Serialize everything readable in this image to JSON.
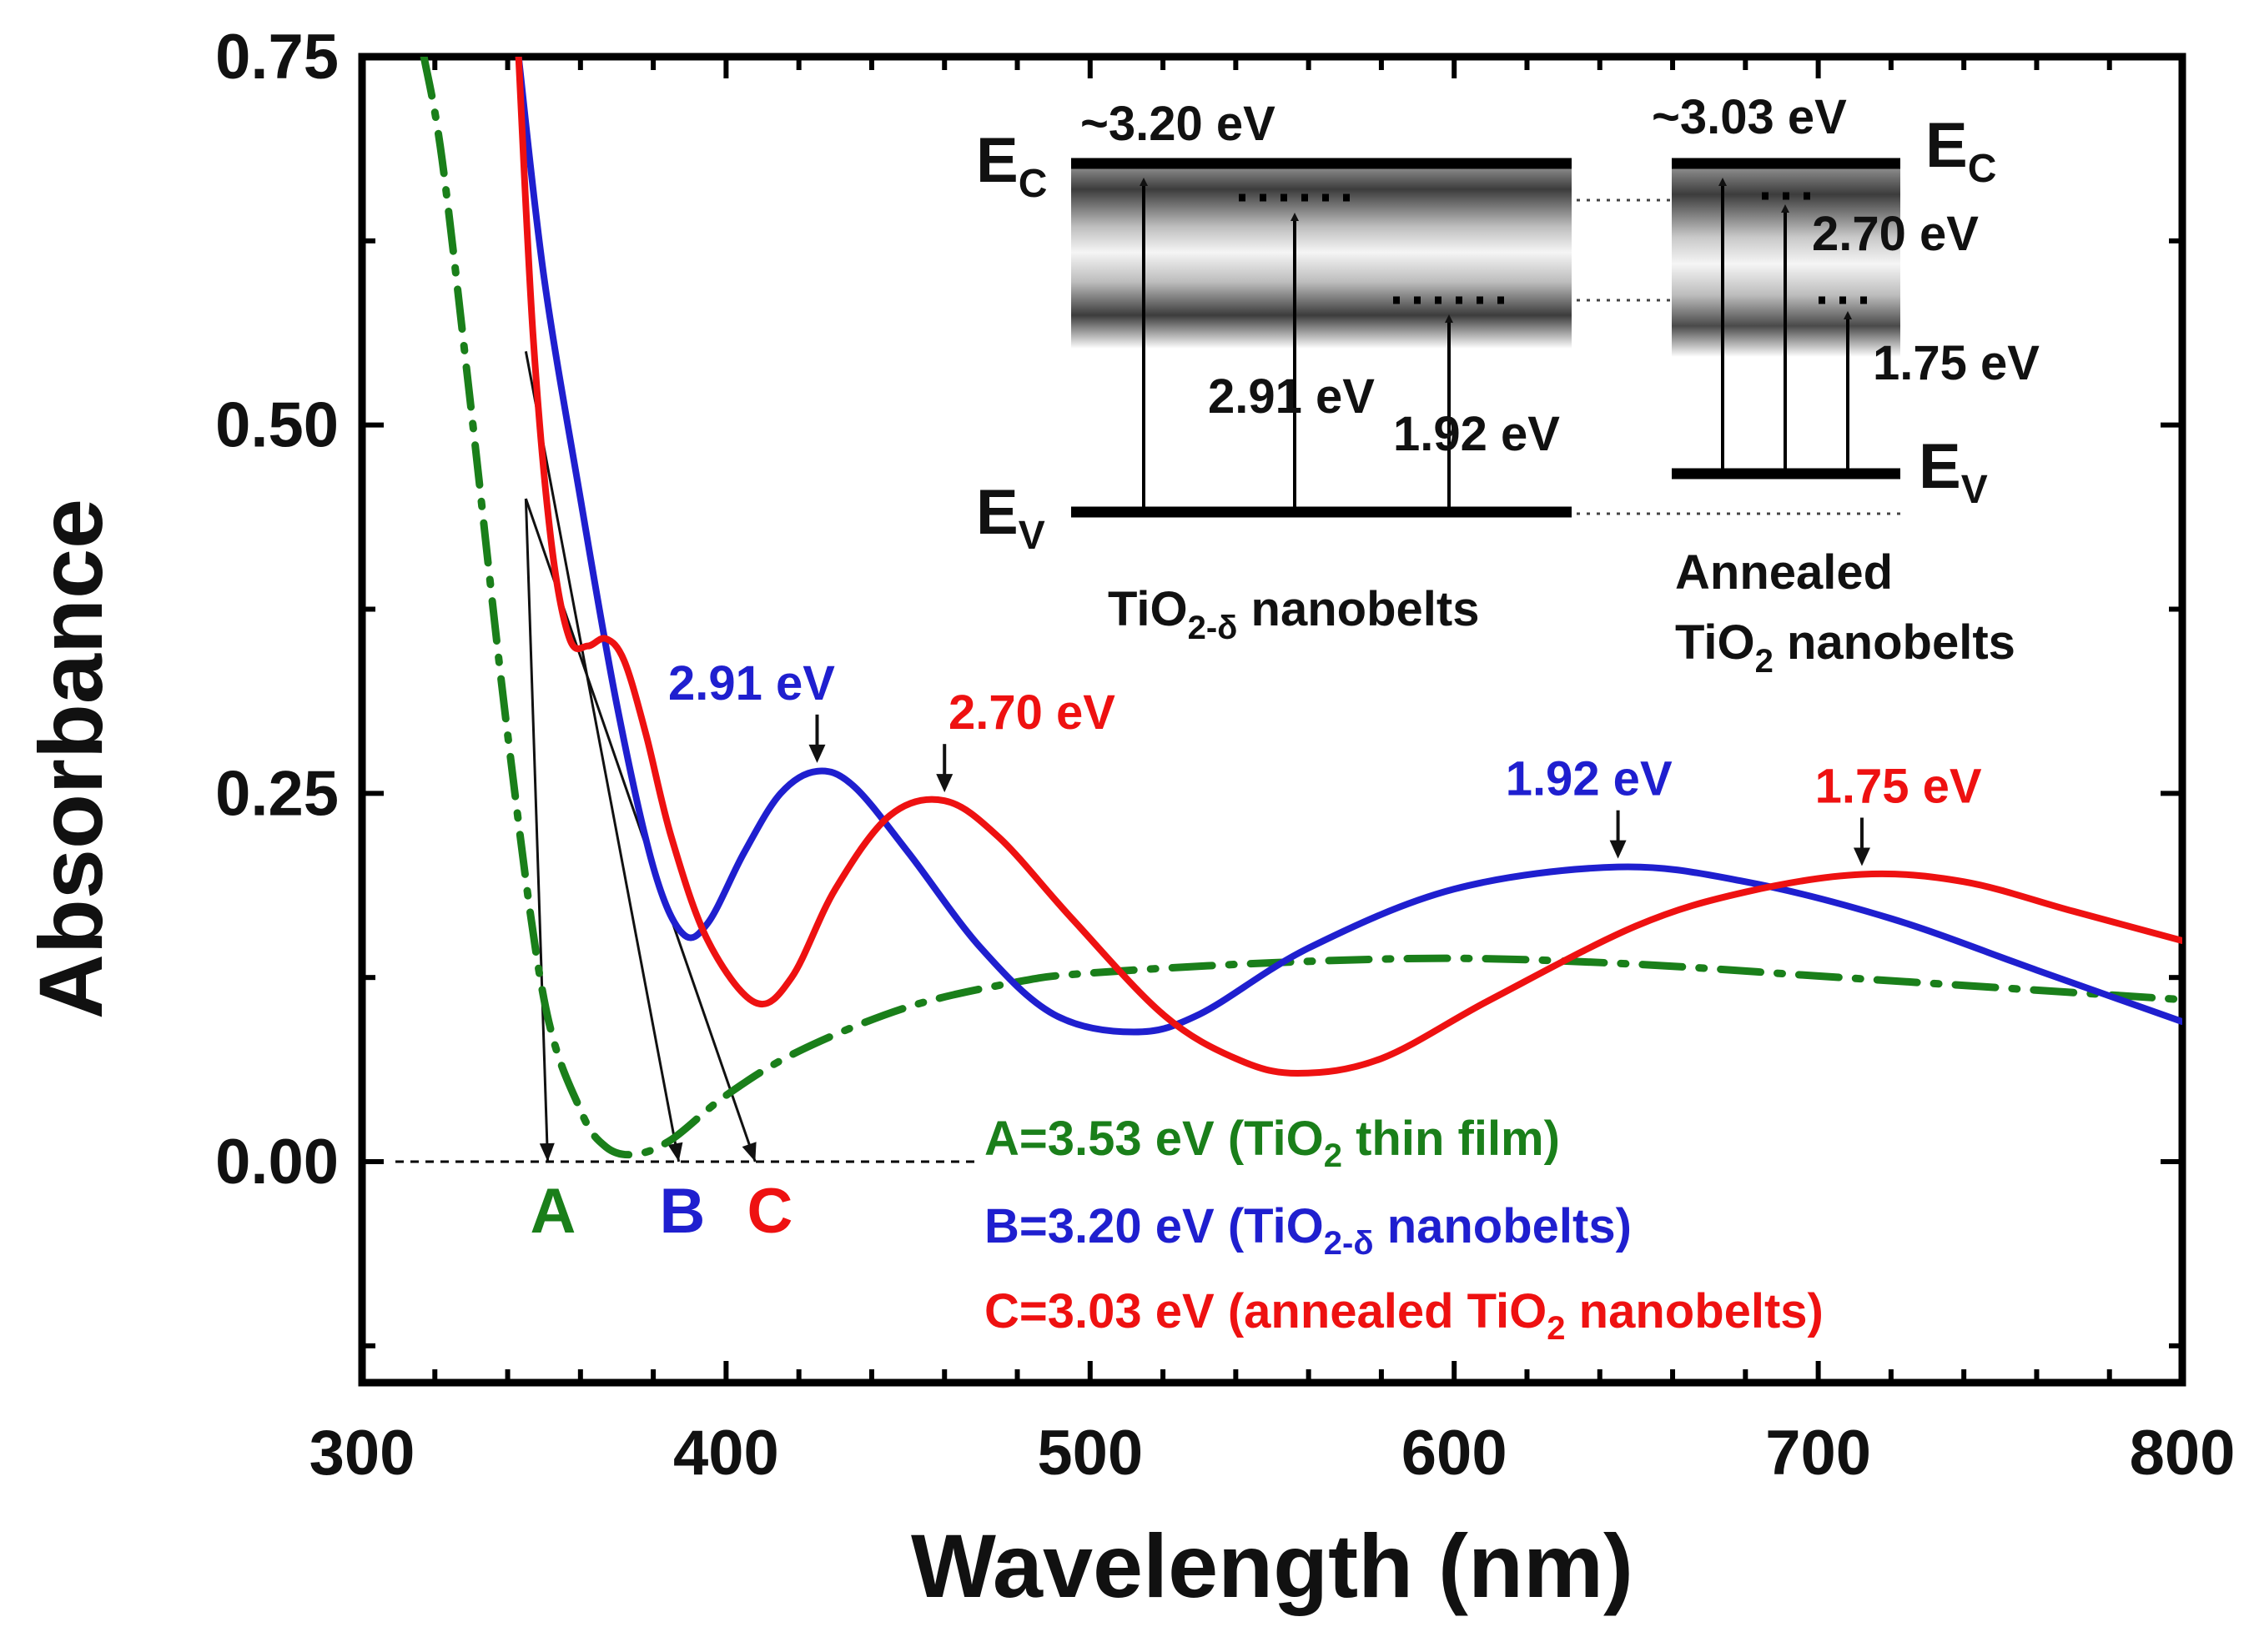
{
  "chart_data": {
    "type": "line",
    "xlabel": "Wavelength (nm)",
    "ylabel": "Absorbance",
    "xlim": [
      300,
      800
    ],
    "ylim": [
      -0.15,
      0.75
    ],
    "xticks": [
      300,
      400,
      500,
      600,
      700,
      800
    ],
    "xtick_labels": [
      "300",
      "400",
      "500",
      "600",
      "700",
      "800"
    ],
    "yticks": [
      0.0,
      0.25,
      0.5,
      0.75
    ],
    "ytick_labels": [
      "0.00",
      "0.25",
      "0.50",
      "0.75"
    ],
    "series": [
      {
        "name": "TiO2 thin film",
        "color": "#1a7f1a",
        "style": "dash-dot",
        "x": [
          317,
          322,
          330,
          340,
          350,
          360,
          367,
          375,
          385,
          400,
          420,
          450,
          480,
          500,
          550,
          600,
          650,
          700,
          750,
          800
        ],
        "y": [
          0.75,
          0.68,
          0.51,
          0.29,
          0.11,
          0.035,
          0.01,
          0.005,
          0.015,
          0.045,
          0.075,
          0.105,
          0.122,
          0.128,
          0.135,
          0.138,
          0.134,
          0.126,
          0.118,
          0.11
        ]
      },
      {
        "name": "TiO2-δ nanobelts",
        "color": "#1f1fcf",
        "style": "solid",
        "x": [
          343,
          350,
          360,
          370,
          380,
          388,
          395,
          405,
          415,
          425,
          435,
          450,
          470,
          490,
          512,
          530,
          560,
          600,
          645,
          680,
          720,
          760,
          800
        ],
        "y": [
          0.75,
          0.6,
          0.45,
          0.31,
          0.2,
          0.155,
          0.162,
          0.21,
          0.25,
          0.265,
          0.255,
          0.21,
          0.145,
          0.1,
          0.088,
          0.1,
          0.145,
          0.185,
          0.2,
          0.19,
          0.165,
          0.13,
          0.095
        ]
      },
      {
        "name": "annealed TiO2 nanobelts",
        "color": "#ee1111",
        "style": "solid",
        "x": [
          343,
          347,
          352,
          357,
          362,
          367,
          372,
          378,
          385,
          395,
          408,
          418,
          430,
          445,
          460,
          475,
          495,
          520,
          540,
          557,
          580,
          610,
          650,
          680,
          712,
          740,
          770,
          800
        ],
        "y": [
          0.75,
          0.56,
          0.42,
          0.355,
          0.35,
          0.355,
          0.34,
          0.29,
          0.22,
          0.15,
          0.108,
          0.125,
          0.185,
          0.235,
          0.245,
          0.22,
          0.165,
          0.1,
          0.07,
          0.06,
          0.07,
          0.11,
          0.16,
          0.183,
          0.195,
          0.19,
          0.17,
          0.15
        ]
      }
    ],
    "peak_markers": [
      {
        "label": "2.91 eV",
        "x": 425,
        "y": 0.265,
        "color": "#1f1fcf",
        "label_x": 407
      },
      {
        "label": "2.70 eV",
        "x": 460,
        "y": 0.245,
        "color": "#ee1111",
        "label_x": 484
      },
      {
        "label": "1.92 eV",
        "x": 645,
        "y": 0.2,
        "color": "#1f1fcf",
        "label_x": 637
      },
      {
        "label": "1.75 eV",
        "x": 712,
        "y": 0.195,
        "color": "#ee1111",
        "label_x": 722
      }
    ],
    "extrapolation_lines": [
      {
        "label": "A",
        "x0": 345,
        "y0": 0.45,
        "x1": 351,
        "y1": 0.0,
        "color": "#1a7f1a"
      },
      {
        "label": "B",
        "x0": 345,
        "y0": 0.55,
        "x1": 387,
        "y1": 0.0,
        "color": "#1f1fcf"
      },
      {
        "label": "C",
        "x0": 345,
        "y0": 0.45,
        "x1": 408,
        "y1": 0.0,
        "color": "#ee1111"
      }
    ],
    "baseline": {
      "y": 0.0,
      "x_from": 300,
      "x_to": 470
    },
    "legend": [
      {
        "key": "A",
        "text_pre": "A=3.53 eV (TiO",
        "sub": "2",
        "text_post": " thin film)",
        "color": "#1a7f1a"
      },
      {
        "key": "B",
        "text_pre": "B=3.20 eV (TiO",
        "sub": "2-δ",
        "text_post": " nanobelts)",
        "color": "#1f1fcf"
      },
      {
        "key": "C",
        "text_pre": "C=3.03 eV (annealed TiO",
        "sub": "2",
        "text_post": " nanobelts)",
        "color": "#ee1111"
      }
    ]
  },
  "inset": {
    "left_diagram": {
      "top_energy": "~3.20 eV",
      "ec_label": "E",
      "ec_sub": "C",
      "ev_label": "E",
      "ev_sub": "V",
      "transition_1": "2.91 eV",
      "transition_2": "1.92 eV",
      "caption_pre": "TiO",
      "caption_sub": "2-δ",
      "caption_post": " nanobelts"
    },
    "right_diagram": {
      "top_energy": "~3.03 eV",
      "ec_label": "E",
      "ec_sub": "C",
      "ev_label": "E",
      "ev_sub": "V",
      "transition_1": "2.70 eV",
      "transition_2": "1.75 eV",
      "caption_line1": "Annealed",
      "caption_pre": "TiO",
      "caption_sub": "2",
      "caption_post": " nanobelts"
    }
  }
}
